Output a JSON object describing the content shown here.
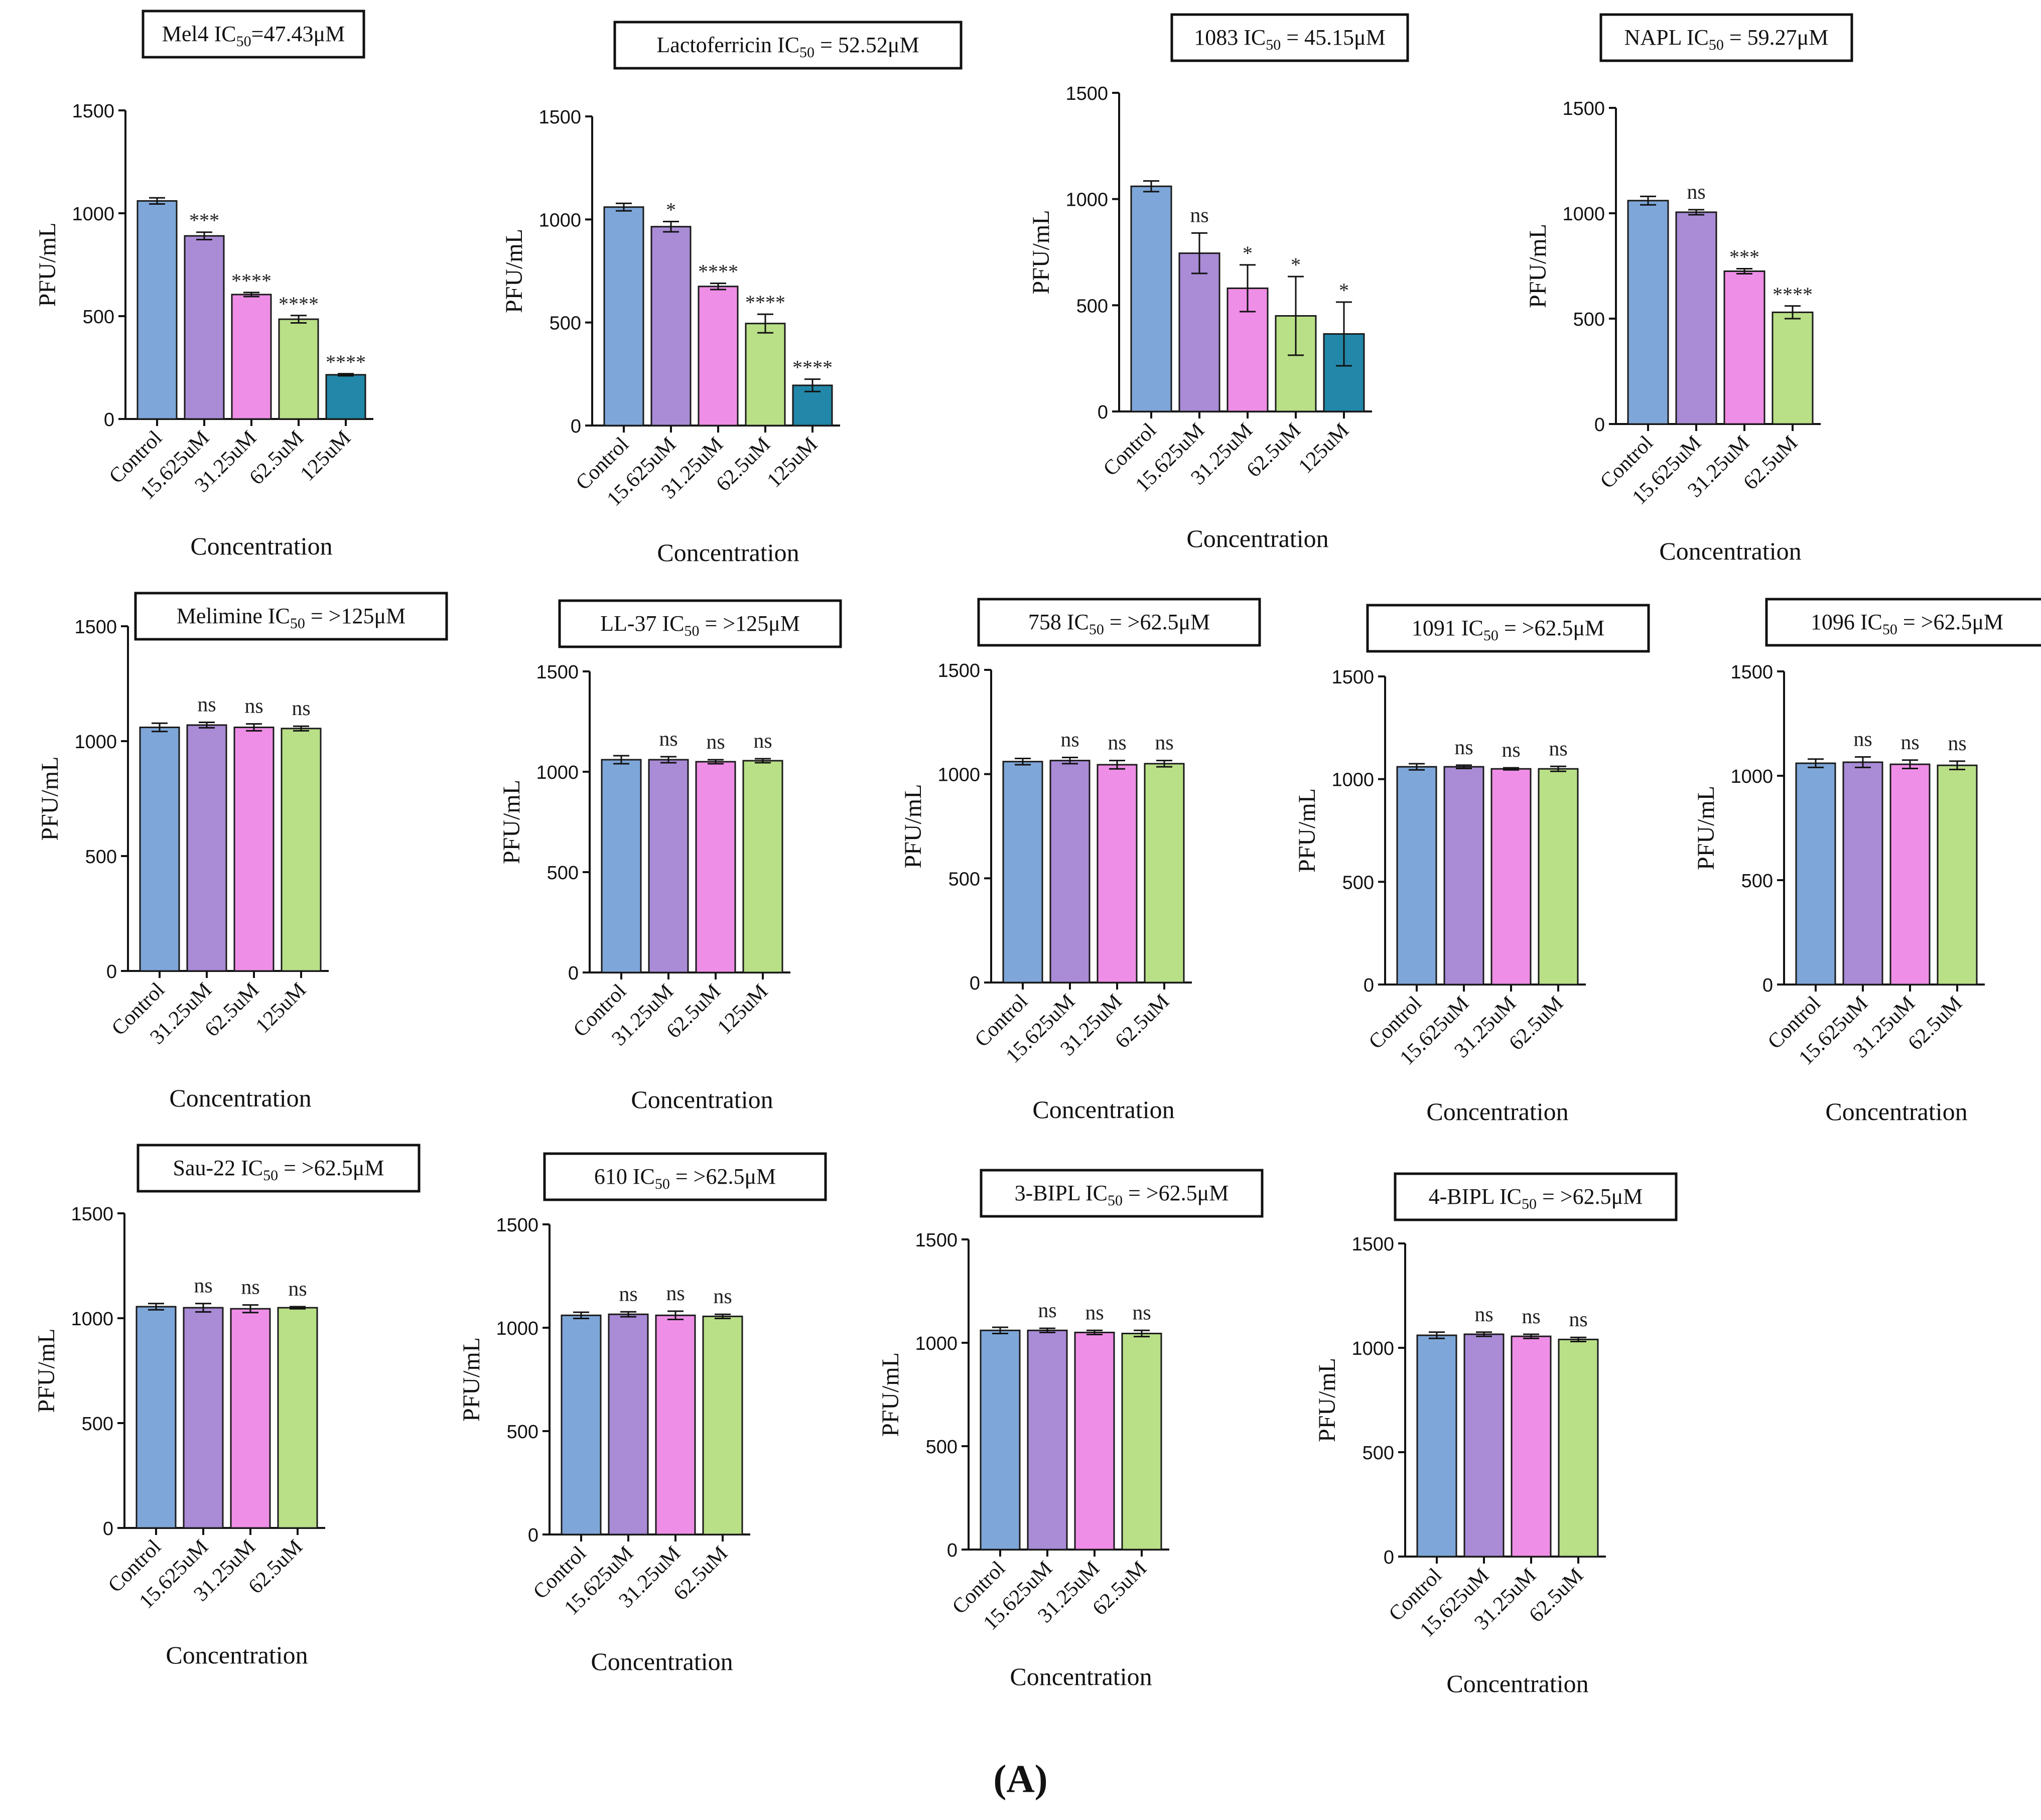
{
  "figure_label": "(A)",
  "colors": {
    "control": "#7ea6d8",
    "c1": "#a98bd6",
    "c2": "#ee8ee6",
    "c3": "#b9df87",
    "c4": "#2287a8",
    "outline": "#1a1a1a"
  },
  "chart_data": [
    {
      "type": "bar",
      "title_name": "Mel4",
      "title_pre": "IC",
      "title_sub": "50",
      "title_post": "=47.43μM",
      "xlabel": "Concentration",
      "ylabel": "PFU/mL",
      "ylim": [
        0,
        1500
      ],
      "yticks": [
        "0",
        "500",
        "1000",
        "1500"
      ],
      "categories": [
        "Control",
        "15.625uM",
        "31.25uM",
        "62.5uM",
        "125uM"
      ],
      "values": [
        1060,
        890,
        605,
        485,
        215
      ],
      "errors": [
        15,
        18,
        10,
        18,
        5
      ],
      "significance": [
        "",
        "***",
        "****",
        "****",
        "****"
      ]
    },
    {
      "type": "bar",
      "title_name": "Lactoferricin",
      "title_pre": "IC",
      "title_sub": "50",
      "title_post": " = 52.52μM",
      "xlabel": "Concentration",
      "ylabel": "PFU/mL",
      "ylim": [
        0,
        1500
      ],
      "yticks": [
        "0",
        "500",
        "1000",
        "1500"
      ],
      "categories": [
        "Control",
        "15.625uM",
        "31.25uM",
        "62.5uM",
        "125uM"
      ],
      "values": [
        1060,
        965,
        675,
        495,
        195
      ],
      "errors": [
        18,
        25,
        15,
        45,
        30
      ],
      "significance": [
        "",
        "*",
        "****",
        "****",
        "****"
      ]
    },
    {
      "type": "bar",
      "title_name": "1083",
      "title_pre": "IC",
      "title_sub": "50",
      "title_post": " = 45.15μM",
      "xlabel": "Concentration",
      "ylabel": "PFU/mL",
      "ylim": [
        0,
        1500
      ],
      "yticks": [
        "0",
        "500",
        "1000",
        "1500"
      ],
      "categories": [
        "Control",
        "15.625uM",
        "31.25uM",
        "62.5uM",
        "125uM"
      ],
      "values": [
        1060,
        745,
        580,
        450,
        365
      ],
      "errors": [
        25,
        95,
        110,
        185,
        150
      ],
      "significance": [
        "",
        "ns",
        "*",
        "*",
        "*"
      ]
    },
    {
      "type": "bar",
      "title_name": "NAPL",
      "title_pre": "IC",
      "title_sub": "50",
      "title_post": " = 59.27μM",
      "xlabel": "Concentration",
      "ylabel": "PFU/mL",
      "ylim": [
        0,
        1500
      ],
      "yticks": [
        "0",
        "500",
        "1000",
        "1500"
      ],
      "categories": [
        "Control",
        "15.625uM",
        "31.25uM",
        "62.5uM"
      ],
      "values": [
        1060,
        1005,
        725,
        530
      ],
      "errors": [
        20,
        12,
        12,
        30
      ],
      "significance": [
        "",
        "ns",
        "***",
        "****"
      ]
    },
    {
      "type": "bar",
      "title_name": "Melimine",
      "title_pre": "IC",
      "title_sub": "50",
      "title_post": " = >125μM",
      "xlabel": "Concentration",
      "ylabel": "PFU/mL",
      "ylim": [
        0,
        1500
      ],
      "yticks": [
        "0",
        "500",
        "1000",
        "1500"
      ],
      "categories": [
        "Control",
        "31.25uM",
        "62.5uM",
        "125uM"
      ],
      "values": [
        1060,
        1070,
        1060,
        1055
      ],
      "errors": [
        18,
        12,
        15,
        10
      ],
      "significance": [
        "",
        "ns",
        "ns",
        "ns"
      ]
    },
    {
      "type": "bar",
      "title_name": "LL-37",
      "title_pre": "IC",
      "title_sub": "50",
      "title_post": " = >125μM",
      "xlabel": "Concentration",
      "ylabel": "PFU/mL",
      "ylim": [
        0,
        1500
      ],
      "yticks": [
        "0",
        "500",
        "1000",
        "1500"
      ],
      "categories": [
        "Control",
        "31.25uM",
        "62.5uM",
        "125uM"
      ],
      "values": [
        1060,
        1060,
        1050,
        1055
      ],
      "errors": [
        20,
        15,
        10,
        10
      ],
      "significance": [
        "",
        "ns",
        "ns",
        "ns"
      ]
    },
    {
      "type": "bar",
      "title_name": "758",
      "title_pre": "IC",
      "title_sub": "50",
      "title_post": " = >62.5μM",
      "xlabel": "Concentration",
      "ylabel": "PFU/mL",
      "ylim": [
        0,
        1500
      ],
      "yticks": [
        "0",
        "500",
        "1000",
        "1500"
      ],
      "categories": [
        "Control",
        "15.625uM",
        "31.25uM",
        "62.5uM"
      ],
      "values": [
        1060,
        1065,
        1045,
        1050
      ],
      "errors": [
        15,
        15,
        20,
        15
      ],
      "significance": [
        "",
        "ns",
        "ns",
        "ns"
      ]
    },
    {
      "type": "bar",
      "title_name": "1091",
      "title_pre": "IC",
      "title_sub": "50",
      "title_post": " = >62.5μM",
      "xlabel": "Concentration",
      "ylabel": "PFU/mL",
      "ylim": [
        0,
        1500
      ],
      "yticks": [
        "0",
        "500",
        "1000",
        "1500"
      ],
      "categories": [
        "Control",
        "15.625uM",
        "31.25uM",
        "62.5uM"
      ],
      "values": [
        1060,
        1060,
        1050,
        1050
      ],
      "errors": [
        15,
        8,
        5,
        12
      ],
      "significance": [
        "",
        "ns",
        "ns",
        "ns"
      ]
    },
    {
      "type": "bar",
      "title_name": "1096",
      "title_pre": "IC",
      "title_sub": "50",
      "title_post": " = >62.5μM",
      "xlabel": "Concentration",
      "ylabel": "PFU/mL",
      "ylim": [
        0,
        1500
      ],
      "yticks": [
        "0",
        "500",
        "1000",
        "1500"
      ],
      "categories": [
        "Control",
        "15.625uM",
        "31.25uM",
        "62.5uM"
      ],
      "values": [
        1060,
        1065,
        1055,
        1050
      ],
      "errors": [
        20,
        25,
        20,
        20
      ],
      "significance": [
        "",
        "ns",
        "ns",
        "ns"
      ]
    },
    {
      "type": "bar",
      "title_name": "Sau-22",
      "title_pre": "IC",
      "title_sub": "50",
      "title_post": " = >62.5μM",
      "xlabel": "Concentration",
      "ylabel": "PFU/mL",
      "ylim": [
        0,
        1500
      ],
      "yticks": [
        "0",
        "500",
        "1000",
        "1500"
      ],
      "categories": [
        "Control",
        "15.625uM",
        "31.25uM",
        "62.5uM"
      ],
      "values": [
        1055,
        1050,
        1045,
        1050
      ],
      "errors": [
        15,
        20,
        18,
        5
      ],
      "significance": [
        "",
        "ns",
        "ns",
        "ns"
      ]
    },
    {
      "type": "bar",
      "title_name": "610",
      "title_pre": "IC",
      "title_sub": "50",
      "title_post": " = >62.5μM",
      "xlabel": "Concentration",
      "ylabel": "PFU/mL",
      "ylim": [
        0,
        1500
      ],
      "yticks": [
        "0",
        "500",
        "1000",
        "1500"
      ],
      "categories": [
        "Control",
        "15.625uM",
        "31.25uM",
        "62.5uM"
      ],
      "values": [
        1060,
        1065,
        1060,
        1055
      ],
      "errors": [
        15,
        12,
        20,
        10
      ],
      "significance": [
        "",
        "ns",
        "ns",
        "ns"
      ]
    },
    {
      "type": "bar",
      "title_name": "3-BIPL",
      "title_pre": "IC",
      "title_sub": "50",
      "title_post": " = >62.5μM",
      "xlabel": "Concentration",
      "ylabel": "PFU/mL",
      "ylim": [
        0,
        1500
      ],
      "yticks": [
        "0",
        "500",
        "1000",
        "1500"
      ],
      "categories": [
        "Control",
        "15.625uM",
        "31.25uM",
        "62.5uM"
      ],
      "values": [
        1060,
        1060,
        1050,
        1045
      ],
      "errors": [
        15,
        10,
        10,
        15
      ],
      "significance": [
        "",
        "ns",
        "ns",
        "ns"
      ]
    },
    {
      "type": "bar",
      "title_name": "4-BIPL",
      "title_pre": "IC",
      "title_sub": "50",
      "title_post": " = >62.5μM",
      "xlabel": "Concentration",
      "ylabel": "PFU/mL",
      "ylim": [
        0,
        1500
      ],
      "yticks": [
        "0",
        "500",
        "1000",
        "1500"
      ],
      "categories": [
        "Control",
        "15.625uM",
        "31.25uM",
        "62.5uM"
      ],
      "values": [
        1060,
        1065,
        1055,
        1040
      ],
      "errors": [
        15,
        10,
        10,
        10
      ],
      "significance": [
        "",
        "ns",
        "ns",
        "ns"
      ]
    }
  ]
}
